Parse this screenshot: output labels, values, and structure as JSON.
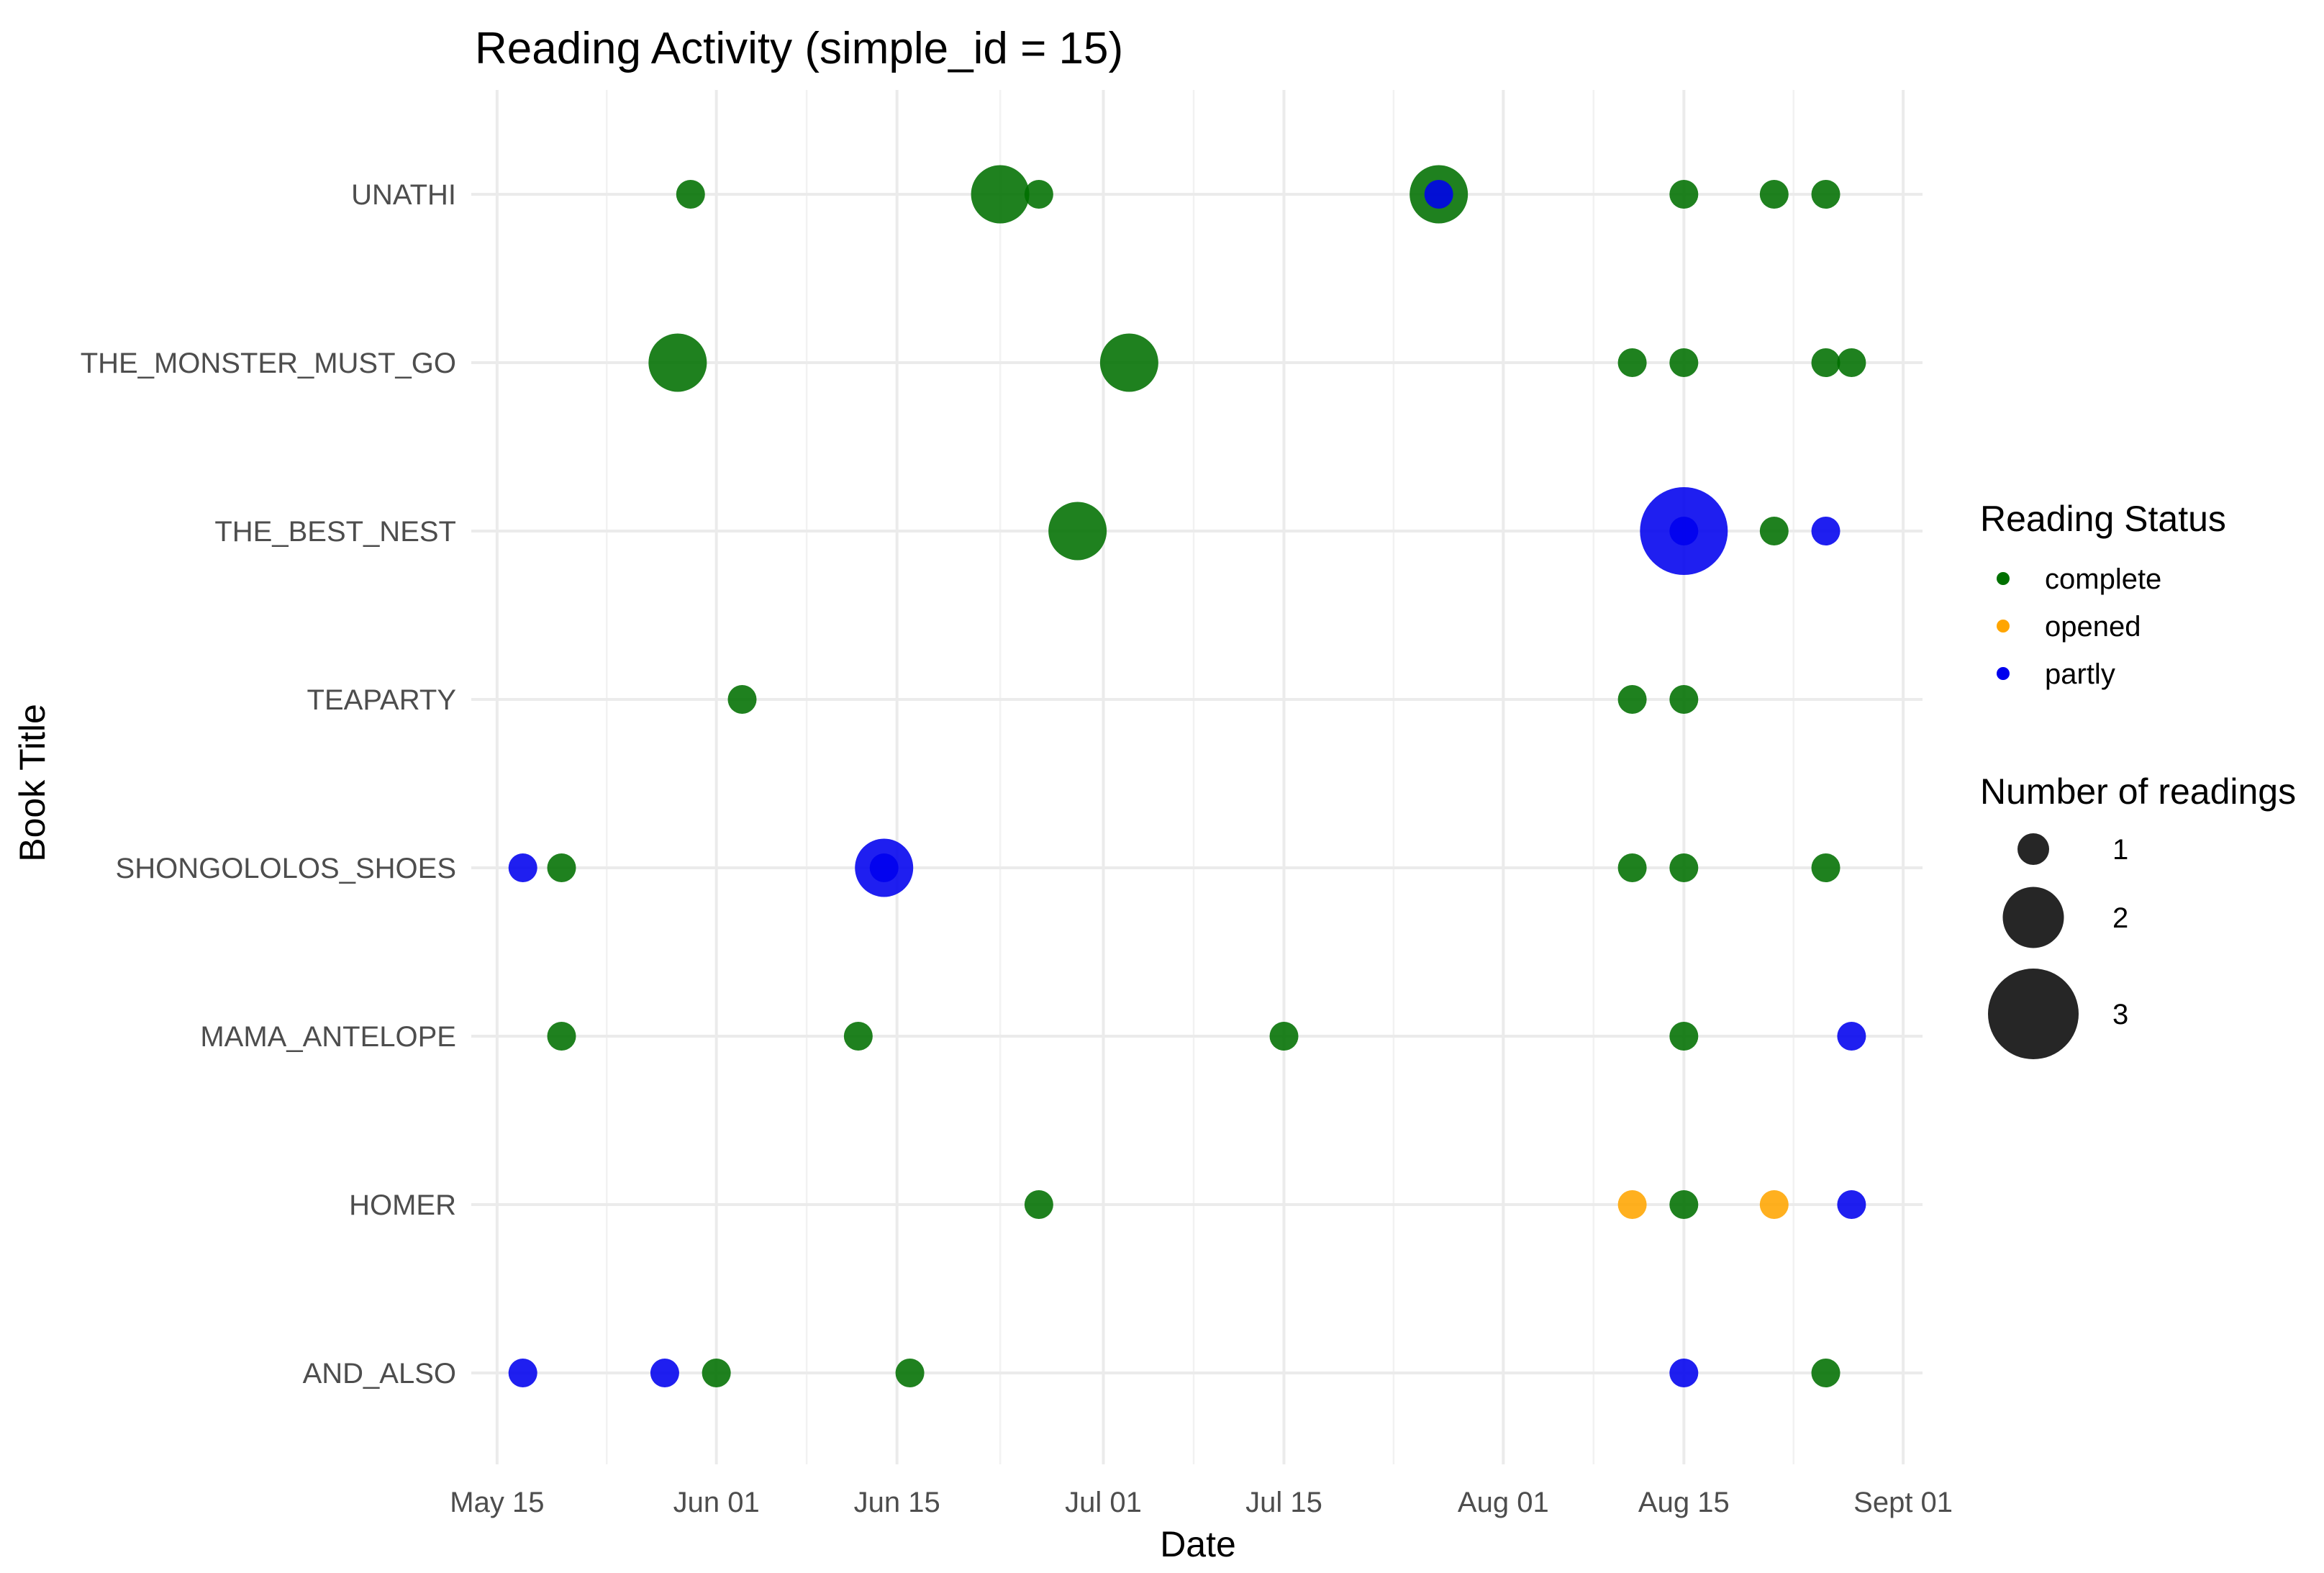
{
  "chart_data": {
    "type": "scatter",
    "title": "Reading Activity (simple_id = 15)",
    "xlabel": "Date",
    "ylabel": "Book Title",
    "x_ticks": [
      {
        "day": 0,
        "label": "May 15"
      },
      {
        "day": 17,
        "label": "Jun 01"
      },
      {
        "day": 31,
        "label": "Jun 15"
      },
      {
        "day": 47,
        "label": "Jul 01"
      },
      {
        "day": 61,
        "label": "Jul 15"
      },
      {
        "day": 78,
        "label": "Aug 01"
      },
      {
        "day": 92,
        "label": "Aug 15"
      },
      {
        "day": 109,
        "label": "Sept 01"
      }
    ],
    "x_minor_days": [
      8.5,
      24,
      39,
      54,
      69.5,
      85,
      100.5
    ],
    "xlim_days": [
      -2,
      110.5
    ],
    "x_origin": "May 15",
    "categories": [
      "AND_ALSO",
      "HOMER",
      "MAMA_ANTELOPE",
      "SHONGOLOLOS_SHOES",
      "TEAPARTY",
      "THE_BEST_NEST",
      "THE_MONSTER_MUST_GO",
      "UNATHI"
    ],
    "status_colors": {
      "complete": "#007000",
      "opened": "#FFA500",
      "partly": "#0000EE"
    },
    "legend_color": {
      "title": "Reading Status",
      "items": [
        {
          "label": "complete",
          "status": "complete"
        },
        {
          "label": "opened",
          "status": "opened"
        },
        {
          "label": "partly",
          "status": "partly"
        }
      ]
    },
    "legend_size": {
      "title": "Number of readings",
      "items": [
        {
          "label": "1",
          "n": 1
        },
        {
          "label": "2",
          "n": 2
        },
        {
          "label": "3",
          "n": 3
        }
      ]
    },
    "points": [
      {
        "book": "UNATHI",
        "day": 15,
        "status": "complete",
        "n": 1
      },
      {
        "book": "UNATHI",
        "day": 39,
        "status": "complete",
        "n": 2
      },
      {
        "book": "UNATHI",
        "day": 42,
        "status": "complete",
        "n": 1
      },
      {
        "book": "UNATHI",
        "day": 73,
        "status": "complete",
        "n": 2
      },
      {
        "book": "UNATHI",
        "day": 73,
        "status": "partly",
        "n": 1
      },
      {
        "book": "UNATHI",
        "day": 92,
        "status": "complete",
        "n": 1
      },
      {
        "book": "UNATHI",
        "day": 99,
        "status": "complete",
        "n": 1
      },
      {
        "book": "UNATHI",
        "day": 103,
        "status": "complete",
        "n": 1
      },
      {
        "book": "THE_MONSTER_MUST_GO",
        "day": 14,
        "status": "complete",
        "n": 2
      },
      {
        "book": "THE_MONSTER_MUST_GO",
        "day": 49,
        "status": "complete",
        "n": 2
      },
      {
        "book": "THE_MONSTER_MUST_GO",
        "day": 88,
        "status": "complete",
        "n": 1
      },
      {
        "book": "THE_MONSTER_MUST_GO",
        "day": 92,
        "status": "complete",
        "n": 1
      },
      {
        "book": "THE_MONSTER_MUST_GO",
        "day": 103,
        "status": "complete",
        "n": 1
      },
      {
        "book": "THE_MONSTER_MUST_GO",
        "day": 105,
        "status": "complete",
        "n": 1
      },
      {
        "book": "THE_BEST_NEST",
        "day": 45,
        "status": "complete",
        "n": 2
      },
      {
        "book": "THE_BEST_NEST",
        "day": 92,
        "status": "partly",
        "n": 3
      },
      {
        "book": "THE_BEST_NEST",
        "day": 92,
        "status": "partly",
        "n": 1
      },
      {
        "book": "THE_BEST_NEST",
        "day": 99,
        "status": "complete",
        "n": 1
      },
      {
        "book": "THE_BEST_NEST",
        "day": 103,
        "status": "partly",
        "n": 1
      },
      {
        "book": "TEAPARTY",
        "day": 19,
        "status": "complete",
        "n": 1
      },
      {
        "book": "TEAPARTY",
        "day": 88,
        "status": "complete",
        "n": 1
      },
      {
        "book": "TEAPARTY",
        "day": 92,
        "status": "complete",
        "n": 1
      },
      {
        "book": "SHONGOLOLOS_SHOES",
        "day": 2,
        "status": "partly",
        "n": 1
      },
      {
        "book": "SHONGOLOLOS_SHOES",
        "day": 5,
        "status": "complete",
        "n": 1
      },
      {
        "book": "SHONGOLOLOS_SHOES",
        "day": 30,
        "status": "partly",
        "n": 2
      },
      {
        "book": "SHONGOLOLOS_SHOES",
        "day": 30,
        "status": "partly",
        "n": 1
      },
      {
        "book": "SHONGOLOLOS_SHOES",
        "day": 88,
        "status": "complete",
        "n": 1
      },
      {
        "book": "SHONGOLOLOS_SHOES",
        "day": 92,
        "status": "complete",
        "n": 1
      },
      {
        "book": "SHONGOLOLOS_SHOES",
        "day": 103,
        "status": "complete",
        "n": 1
      },
      {
        "book": "MAMA_ANTELOPE",
        "day": 5,
        "status": "complete",
        "n": 1
      },
      {
        "book": "MAMA_ANTELOPE",
        "day": 28,
        "status": "complete",
        "n": 1
      },
      {
        "book": "MAMA_ANTELOPE",
        "day": 61,
        "status": "complete",
        "n": 1
      },
      {
        "book": "MAMA_ANTELOPE",
        "day": 92,
        "status": "complete",
        "n": 1
      },
      {
        "book": "MAMA_ANTELOPE",
        "day": 105,
        "status": "partly",
        "n": 1
      },
      {
        "book": "HOMER",
        "day": 42,
        "status": "complete",
        "n": 1
      },
      {
        "book": "HOMER",
        "day": 88,
        "status": "opened",
        "n": 1
      },
      {
        "book": "HOMER",
        "day": 92,
        "status": "complete",
        "n": 1
      },
      {
        "book": "HOMER",
        "day": 99,
        "status": "opened",
        "n": 1
      },
      {
        "book": "HOMER",
        "day": 105,
        "status": "partly",
        "n": 1
      },
      {
        "book": "AND_ALSO",
        "day": 2,
        "status": "partly",
        "n": 1
      },
      {
        "book": "AND_ALSO",
        "day": 13,
        "status": "partly",
        "n": 1
      },
      {
        "book": "AND_ALSO",
        "day": 17,
        "status": "complete",
        "n": 1
      },
      {
        "book": "AND_ALSO",
        "day": 32,
        "status": "complete",
        "n": 1
      },
      {
        "book": "AND_ALSO",
        "day": 92,
        "status": "partly",
        "n": 1
      },
      {
        "book": "AND_ALSO",
        "day": 103,
        "status": "complete",
        "n": 1
      }
    ]
  }
}
